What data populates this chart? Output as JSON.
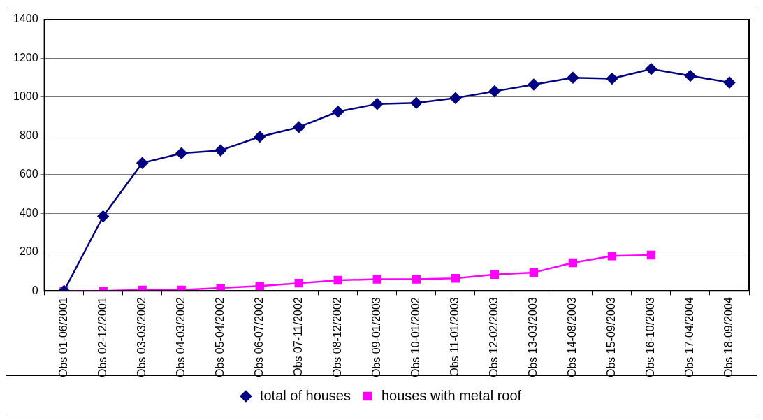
{
  "chart_data": {
    "type": "line",
    "categories": [
      "Obs 01-06/2001",
      "Obs 02-12/2001",
      "Obs 03-03/2002",
      "Obs 04-03/2002",
      "Obs 05-04/2002",
      "Obs 06-07/2002",
      "Obs 07-11/2002",
      "Obs 08-12/2002",
      "Obs 09-01/2003",
      "Obs 10-01/2002",
      "Obs 11-01/2003",
      "Obs 12-02/2003",
      "Obs 13-03/2003",
      "Obs 14-08/2003",
      "Obs 15-09/2003",
      "Obs 16-10/2003",
      "Obs 17-04/2004",
      "Obs 18-09/2004"
    ],
    "series": [
      {
        "name": "total of houses",
        "color": "#000080",
        "marker": "diamond",
        "values": [
          0,
          385,
          660,
          710,
          725,
          795,
          845,
          925,
          965,
          970,
          995,
          1030,
          1065,
          1100,
          1095,
          1145,
          1110,
          1075
        ]
      },
      {
        "name": "houses with metal roof",
        "color": "#ff00ff",
        "marker": "square",
        "values": [
          0,
          0,
          5,
          5,
          15,
          25,
          40,
          55,
          60,
          60,
          65,
          85,
          95,
          145,
          180,
          185,
          null,
          null
        ]
      }
    ],
    "ylim": [
      0,
      1400
    ],
    "yticks": [
      0,
      200,
      400,
      600,
      800,
      1000,
      1200,
      1400
    ],
    "grid": "y",
    "legend": "bottom",
    "line_style": "solid"
  }
}
